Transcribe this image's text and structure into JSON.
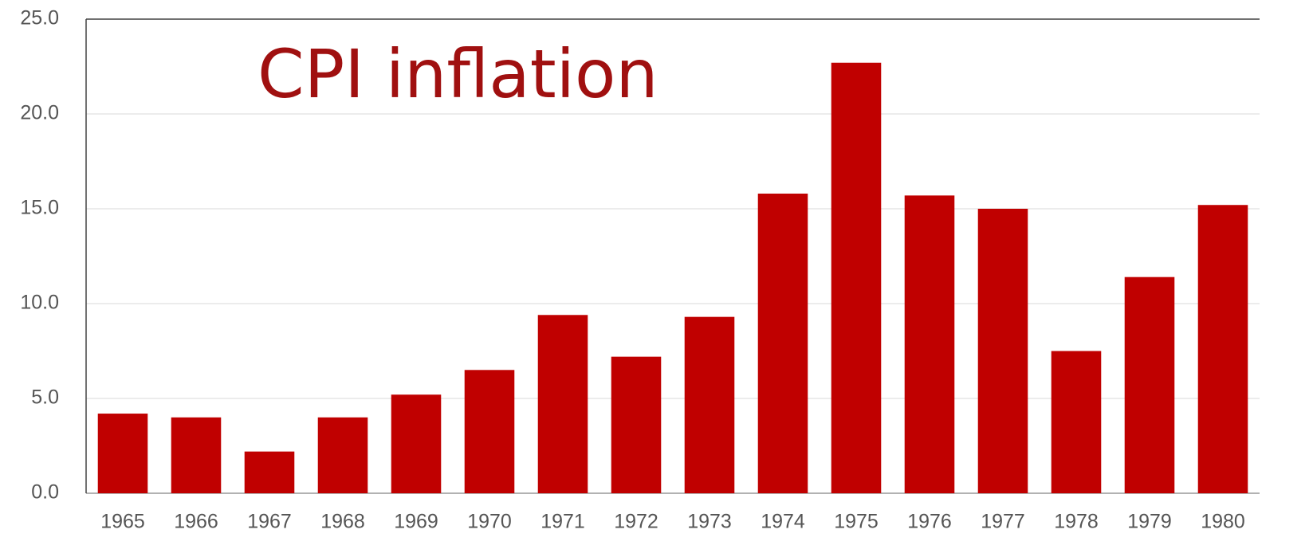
{
  "chart_data": {
    "type": "bar",
    "title": "CPI inflation",
    "categories": [
      "1965",
      "1966",
      "1967",
      "1968",
      "1969",
      "1970",
      "1971",
      "1972",
      "1973",
      "1974",
      "1975",
      "1976",
      "1977",
      "1978",
      "1979",
      "1980"
    ],
    "values": [
      4.2,
      4.0,
      2.2,
      4.0,
      5.2,
      6.5,
      9.4,
      7.2,
      9.3,
      15.8,
      22.7,
      15.7,
      15.0,
      7.5,
      11.4,
      15.2
    ],
    "color": "#c00000",
    "ylim": [
      0,
      25
    ],
    "yticks": [
      {
        "value": 0,
        "label": "0.0"
      },
      {
        "value": 5,
        "label": "5.0"
      },
      {
        "value": 10,
        "label": "10.0"
      },
      {
        "value": 15,
        "label": "15.0"
      },
      {
        "value": 20,
        "label": "20.0"
      },
      {
        "value": 25,
        "label": "25.0"
      }
    ],
    "grid": true
  }
}
